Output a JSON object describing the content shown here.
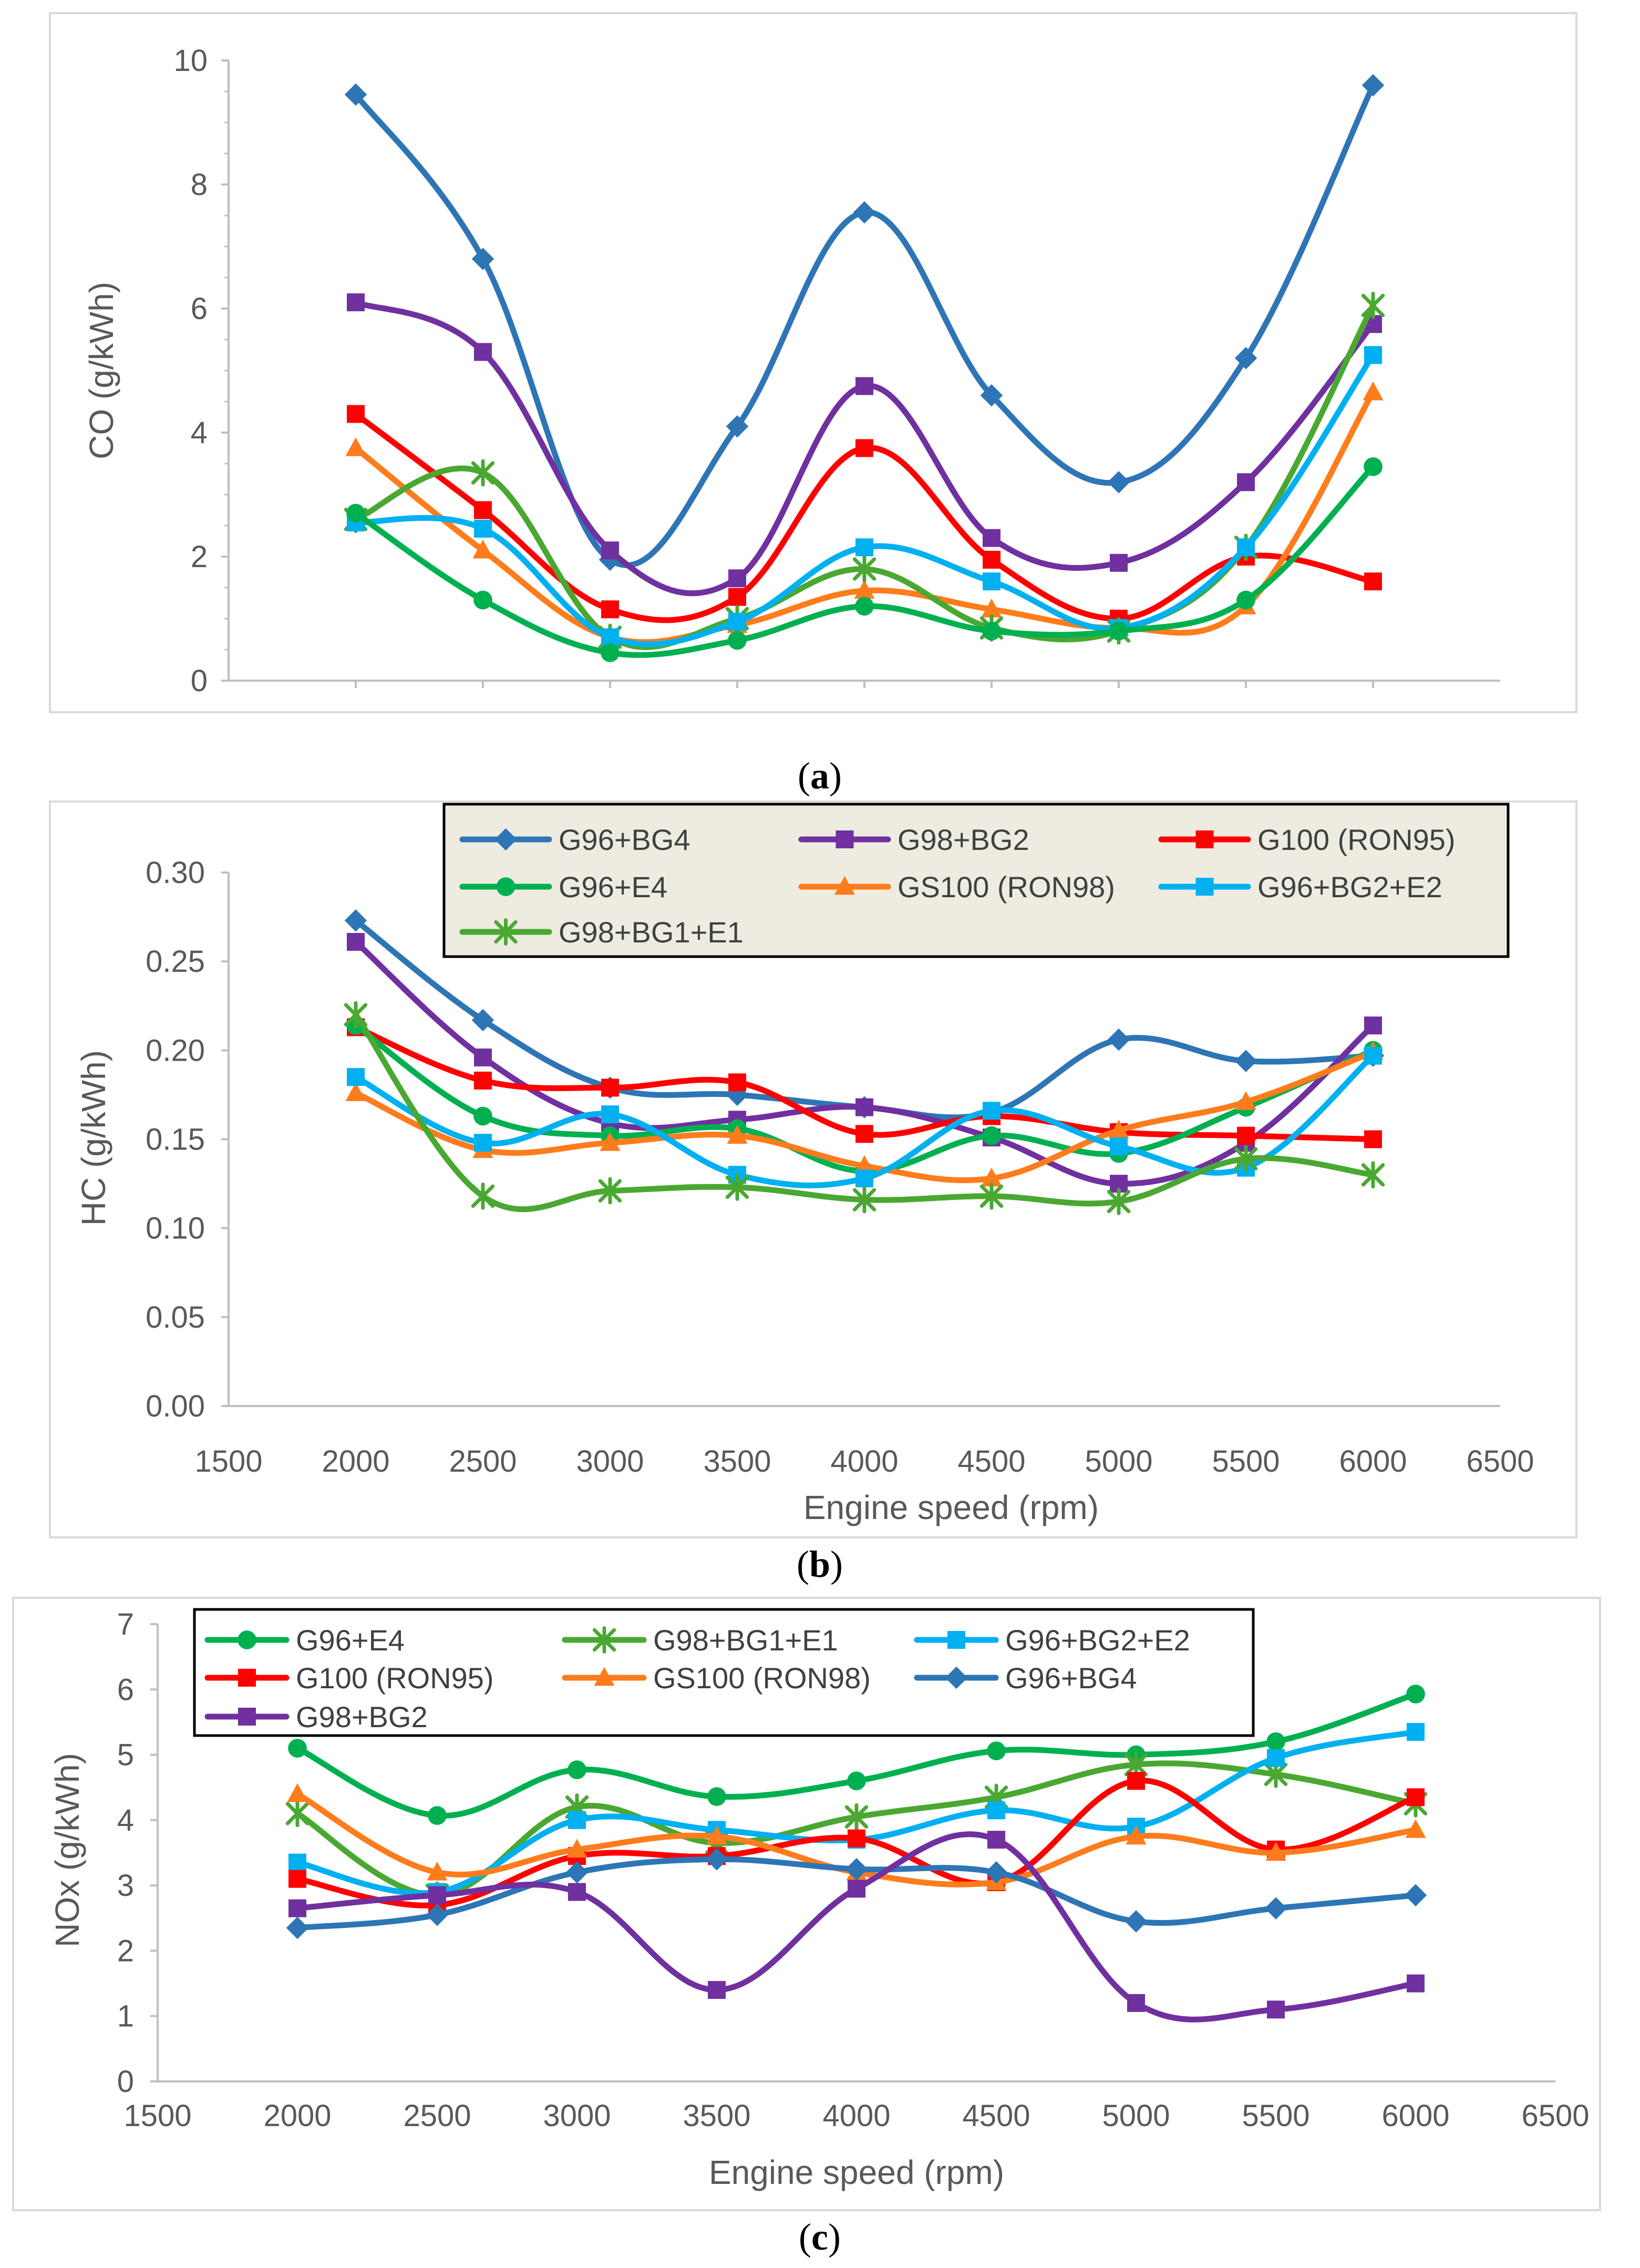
{
  "figure": {
    "colors": {
      "G96+BG4": "#2e75b6",
      "G98+BG2": "#7030a0",
      "G100 (RON95)": "#ff0000",
      "G96+E4": "#00b050",
      "GS100 (RON98)": "#ff7c1c",
      "G96+BG2+E2": "#00b0f0",
      "G98+BG1+E1": "#4aa832"
    },
    "markers": {
      "G96+BG4": "diamond",
      "G98+BG2": "square",
      "G100 (RON95)": "square",
      "G96+E4": "circle",
      "GS100 (RON98)": "triangle",
      "G96+BG2+E2": "square",
      "G98+BG1+E1": "star"
    }
  },
  "chart_data": [
    {
      "id": "a",
      "type": "line",
      "caption": "(a)",
      "caption_letter": "a",
      "title": "",
      "xlabel": "",
      "ylabel": "CO (g/kWh)",
      "ylim": [
        0,
        10
      ],
      "yticks": [
        0,
        2,
        4,
        6,
        8,
        10
      ],
      "ytick_labels": [
        "0",
        "2",
        "4",
        "6",
        "8",
        "10"
      ],
      "xlim": [
        1500,
        6500
      ],
      "show_x_tick_labels": false,
      "xtick_labels": [],
      "legend": false,
      "legend_placement": "none",
      "x": [
        2000,
        2500,
        3000,
        3500,
        4000,
        4500,
        5000,
        5500,
        6000
      ],
      "series": [
        {
          "name": "G96+BG4",
          "values": [
            9.45,
            6.8,
            1.95,
            4.1,
            7.55,
            4.6,
            3.2,
            5.2,
            9.6
          ]
        },
        {
          "name": "G98+BG2",
          "values": [
            6.1,
            5.3,
            2.1,
            1.65,
            4.75,
            2.3,
            1.9,
            3.2,
            5.75
          ]
        },
        {
          "name": "G100 (RON95)",
          "values": [
            4.3,
            2.75,
            1.15,
            1.35,
            3.75,
            1.95,
            1.0,
            2.0,
            1.6
          ]
        },
        {
          "name": "GS100 (RON98)",
          "values": [
            3.75,
            2.1,
            0.7,
            0.9,
            1.45,
            1.15,
            0.85,
            1.2,
            4.65
          ]
        },
        {
          "name": "G98+BG1+E1",
          "values": [
            2.6,
            3.35,
            0.7,
            1.0,
            1.8,
            0.85,
            0.8,
            2.15,
            6.05
          ]
        },
        {
          "name": "G96+BG2+E2",
          "values": [
            2.55,
            2.45,
            0.7,
            0.95,
            2.15,
            1.6,
            0.85,
            2.15,
            5.25
          ]
        },
        {
          "name": "G96+E4",
          "values": [
            2.7,
            1.3,
            0.45,
            0.65,
            1.2,
            0.8,
            0.8,
            1.3,
            3.45
          ]
        }
      ]
    },
    {
      "id": "b",
      "type": "line",
      "caption": "(b)",
      "caption_letter": "b",
      "title": "",
      "xlabel": "Engine speed (rpm)",
      "ylabel": "HC (g/kWh)",
      "ylim": [
        0,
        0.3
      ],
      "yticks": [
        0,
        0.05,
        0.1,
        0.15,
        0.2,
        0.25,
        0.3
      ],
      "ytick_labels": [
        "0.00",
        "0.05",
        "0.10",
        "0.15",
        "0.20",
        "0.25",
        "0.30"
      ],
      "xlim": [
        1500,
        6500
      ],
      "show_x_tick_labels": true,
      "xtick_labels": [
        "1500",
        "2000",
        "2500",
        "3000",
        "3500",
        "4000",
        "4500",
        "5000",
        "5500",
        "6000",
        "6500"
      ],
      "legend": true,
      "legend_placement": "top-right",
      "legend_entries": [
        "G96+BG4",
        "G98+BG2",
        "G100 (RON95)",
        "G96+E4",
        "GS100 (RON98)",
        "G96+BG2+E2",
        "G98+BG1+E1"
      ],
      "x": [
        2000,
        2500,
        3000,
        3500,
        4000,
        4500,
        5000,
        5500,
        6000
      ],
      "series": [
        {
          "name": "G96+BG4",
          "values": [
            0.273,
            0.217,
            0.179,
            0.175,
            0.168,
            0.165,
            0.206,
            0.194,
            0.197
          ]
        },
        {
          "name": "G98+BG2",
          "values": [
            0.261,
            0.196,
            0.159,
            0.161,
            0.168,
            0.151,
            0.125,
            0.148,
            0.214
          ]
        },
        {
          "name": "G100 (RON95)",
          "values": [
            0.213,
            0.183,
            0.179,
            0.182,
            0.153,
            0.163,
            0.154,
            0.152,
            0.15
          ]
        },
        {
          "name": "G96+E4",
          "values": [
            0.214,
            0.163,
            0.152,
            0.156,
            0.132,
            0.152,
            0.142,
            0.168,
            0.2
          ]
        },
        {
          "name": "GS100 (RON98)",
          "values": [
            0.176,
            0.144,
            0.148,
            0.152,
            0.135,
            0.128,
            0.155,
            0.171,
            0.199
          ]
        },
        {
          "name": "G96+BG2+E2",
          "values": [
            0.185,
            0.148,
            0.164,
            0.13,
            0.128,
            0.166,
            0.146,
            0.134,
            0.197
          ]
        },
        {
          "name": "G98+BG1+E1",
          "values": [
            0.22,
            0.118,
            0.121,
            0.123,
            0.116,
            0.118,
            0.115,
            0.139,
            0.13
          ]
        }
      ]
    },
    {
      "id": "c",
      "type": "line",
      "caption": "(c)",
      "caption_letter": "c",
      "title": "",
      "xlabel": "Engine speed (rpm)",
      "ylabel": "NOx (g/kWh)",
      "ylim": [
        0,
        7
      ],
      "yticks": [
        0,
        1,
        2,
        3,
        4,
        5,
        6,
        7
      ],
      "ytick_labels": [
        "0",
        "1",
        "2",
        "3",
        "4",
        "5",
        "6",
        "7"
      ],
      "xlim": [
        1500,
        6500
      ],
      "show_x_tick_labels": true,
      "xtick_labels": [
        "1500",
        "2000",
        "2500",
        "3000",
        "3500",
        "4000",
        "4500",
        "5000",
        "5500",
        "6000",
        "6500"
      ],
      "legend": true,
      "legend_placement": "top-left",
      "legend_entries": [
        "G96+E4",
        "G98+BG1+E1",
        "G96+BG2+E2",
        "G100 (RON95)",
        "GS100 (RON98)",
        "G96+BG4",
        "G98+BG2"
      ],
      "x": [
        2000,
        2500,
        3000,
        3500,
        4000,
        4500,
        5000,
        5500,
        6000
      ],
      "series": [
        {
          "name": "G96+E4",
          "values": [
            5.1,
            4.07,
            4.77,
            4.36,
            4.6,
            5.06,
            5.0,
            5.2,
            5.93
          ]
        },
        {
          "name": "G98+BG1+E1",
          "values": [
            4.1,
            2.85,
            4.2,
            3.65,
            4.05,
            4.35,
            4.85,
            4.7,
            4.25
          ]
        },
        {
          "name": "G96+BG2+E2",
          "values": [
            3.35,
            2.9,
            4.0,
            3.85,
            3.7,
            4.15,
            3.9,
            4.95,
            5.35
          ]
        },
        {
          "name": "G100 (RON95)",
          "values": [
            3.1,
            2.7,
            3.45,
            3.45,
            3.72,
            3.05,
            4.6,
            3.55,
            4.35
          ]
        },
        {
          "name": "GS100 (RON98)",
          "values": [
            4.4,
            3.2,
            3.55,
            3.75,
            3.2,
            3.05,
            3.75,
            3.5,
            3.85
          ]
        },
        {
          "name": "G96+BG4",
          "values": [
            2.35,
            2.55,
            3.2,
            3.4,
            3.25,
            3.2,
            2.45,
            2.65,
            2.85
          ]
        },
        {
          "name": "G98+BG2",
          "values": [
            2.65,
            2.85,
            2.9,
            1.4,
            2.95,
            3.7,
            1.2,
            1.1,
            1.5
          ]
        }
      ]
    }
  ]
}
